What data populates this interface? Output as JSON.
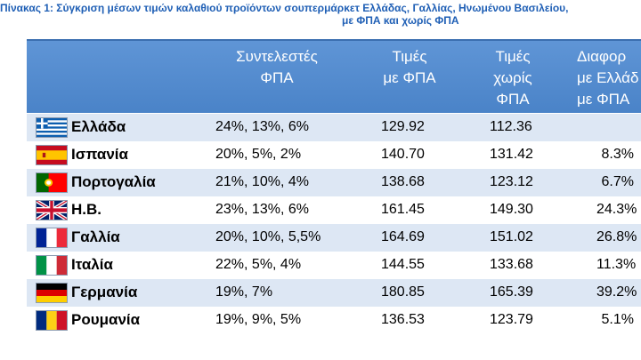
{
  "caption": {
    "line1": "Πίνακας 1: Σύγκριση μέσων τιμών καλαθιού προϊόντων σουπερμάρκετ Ελλάδας, Γαλλίας, Ηνωμένου Βασιλείου,",
    "line2": "με ΦΠΑ και χωρίς ΦΠΑ"
  },
  "headers": {
    "vat_rates": [
      "Συντελεστές",
      "ΦΠΑ"
    ],
    "price_with_vat": [
      "Τιμές",
      "με ΦΠΑ"
    ],
    "price_without_vat": [
      "Τιμές",
      "χωρίς",
      "ΦΠΑ"
    ],
    "difference": [
      "Διαφορ",
      "με Ελλάδ",
      "με ΦΠΑ"
    ]
  },
  "rows": [
    {
      "flag": "greece-flag-icon",
      "country": "Ελλάδα",
      "vat": "24%, 13%, 6%",
      "with_vat": "129.92",
      "without_vat": "112.36",
      "diff": ""
    },
    {
      "flag": "spain-flag-icon",
      "country": "Ισπανία",
      "vat": "20%, 5%, 2%",
      "with_vat": "140.70",
      "without_vat": "131.42",
      "diff": "8.3%"
    },
    {
      "flag": "portugal-flag-icon",
      "country": "Πορτογαλία",
      "vat": "21%, 10%, 4%",
      "with_vat": "138.68",
      "without_vat": "123.12",
      "diff": "6.7%"
    },
    {
      "flag": "uk-flag-icon",
      "country": "Η.Β.",
      "vat": "23%, 13%, 6%",
      "with_vat": "161.45",
      "without_vat": "149.30",
      "diff": "24.3%"
    },
    {
      "flag": "france-flag-icon",
      "country": "Γαλλία",
      "vat": "20%, 10%, 5,5%",
      "with_vat": "164.69",
      "without_vat": "151.02",
      "diff": "26.8%"
    },
    {
      "flag": "italy-flag-icon",
      "country": "Ιταλία",
      "vat": "22%, 5%, 4%",
      "with_vat": "144.55",
      "without_vat": "133.68",
      "diff": "11.3%"
    },
    {
      "flag": "germany-flag-icon",
      "country": "Γερμανία",
      "vat": "19%, 7%",
      "with_vat": "180.85",
      "without_vat": "165.39",
      "diff": "39.2%"
    },
    {
      "flag": "romania-flag-icon",
      "country": "Ρουμανία",
      "vat": "19%, 9%, 5%",
      "with_vat": "136.53",
      "without_vat": "123.79",
      "diff": "5.1%"
    }
  ],
  "colors": {
    "header_bg": "#4f89cd",
    "row_alt": "#dde7f4",
    "caption": "#1f5fb5"
  }
}
